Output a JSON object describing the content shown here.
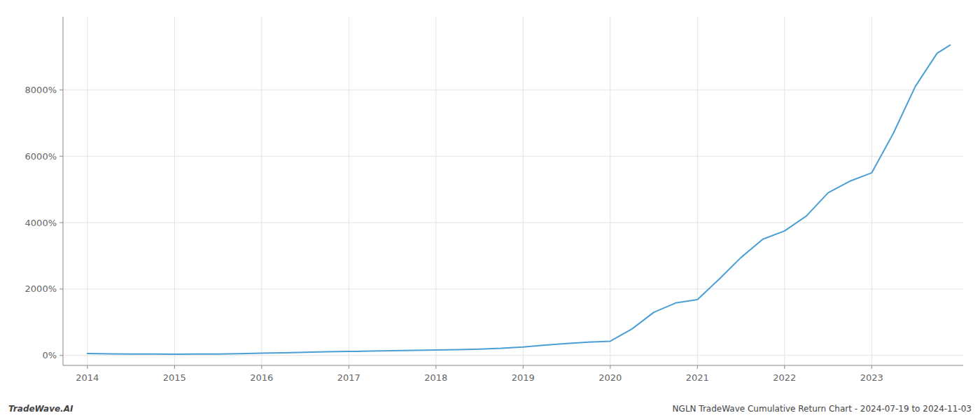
{
  "chart_data": {
    "type": "line",
    "x": [
      2014.0,
      2014.25,
      2014.5,
      2014.75,
      2015.0,
      2015.25,
      2015.5,
      2015.75,
      2016.0,
      2016.25,
      2016.5,
      2016.75,
      2017.0,
      2017.25,
      2017.5,
      2017.75,
      2018.0,
      2018.25,
      2018.5,
      2018.75,
      2019.0,
      2019.25,
      2019.5,
      2019.75,
      2020.0,
      2020.25,
      2020.5,
      2020.75,
      2021.0,
      2021.25,
      2021.5,
      2021.75,
      2022.0,
      2022.25,
      2022.5,
      2022.75,
      2023.0,
      2023.25,
      2023.5,
      2023.75,
      2023.9
    ],
    "values": [
      60,
      50,
      45,
      42,
      38,
      40,
      45,
      55,
      70,
      80,
      95,
      110,
      120,
      130,
      145,
      155,
      165,
      175,
      190,
      215,
      255,
      310,
      360,
      400,
      430,
      800,
      1300,
      1580,
      1680,
      2300,
      2950,
      3500,
      3750,
      4200,
      4900,
      5250,
      5500,
      6700,
      8100,
      9100,
      9350
    ],
    "color": "#4a9fd4",
    "xlim": [
      2013.72,
      2024.05
    ],
    "ylim": [
      -300,
      10200
    ],
    "xticks": [
      2014,
      2015,
      2016,
      2017,
      2018,
      2019,
      2020,
      2021,
      2022,
      2023
    ],
    "yticks": [
      {
        "value": 0,
        "label": "0%"
      },
      {
        "value": 2000,
        "label": "2000%"
      },
      {
        "value": 4000,
        "label": "4000%"
      },
      {
        "value": 6000,
        "label": "6000%"
      },
      {
        "value": 8000,
        "label": "8000%"
      }
    ],
    "grid": true,
    "annotations": [
      "TradeWave.AI",
      "NGLN TradeWave Cumulative Return Chart - 2024-07-19 to 2024-11-03"
    ]
  }
}
